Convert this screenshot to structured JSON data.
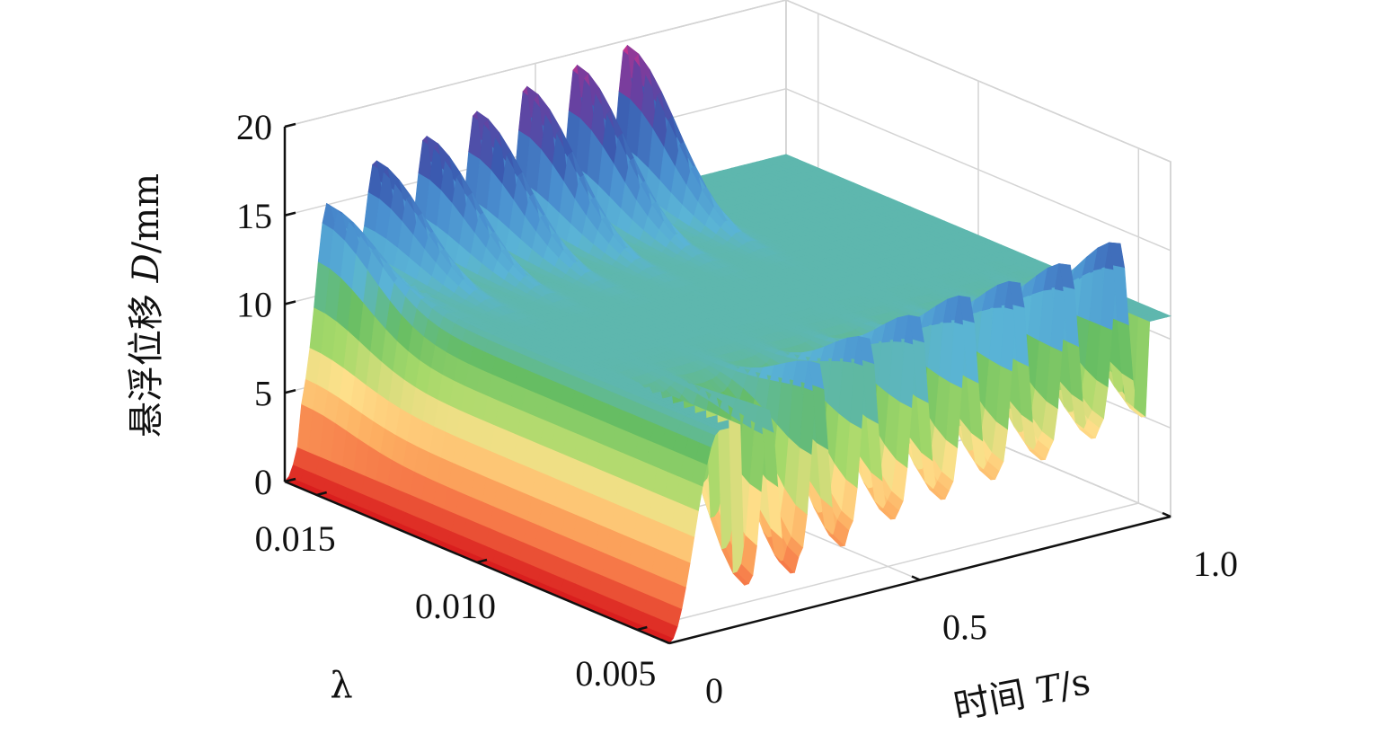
{
  "chart_data": {
    "type": "surface3d",
    "xlabel_prefix": "时间 ",
    "xlabel_var": "T",
    "xlabel_unit": "/s",
    "ylabel_var": "λ",
    "zlabel_prefix": "悬浮位移 ",
    "zlabel_var": "D",
    "zlabel_unit": "/mm",
    "x_ticks": [
      {
        "value": 0,
        "label": "0"
      },
      {
        "value": 0.5,
        "label": "0.5"
      },
      {
        "value": 1.0,
        "label": "1.0"
      }
    ],
    "y_ticks": [
      {
        "value": 0.015,
        "label": "0.015"
      },
      {
        "value": 0.01,
        "label": "0.010"
      },
      {
        "value": 0.005,
        "label": "0.005"
      }
    ],
    "z_ticks": [
      {
        "value": 0,
        "label": "0"
      },
      {
        "value": 5,
        "label": "5"
      },
      {
        "value": 10,
        "label": "10"
      },
      {
        "value": 15,
        "label": "15"
      },
      {
        "value": 20,
        "label": "20"
      }
    ],
    "xlim": [
      0,
      1.0
    ],
    "ylim": [
      0.004,
      0.016
    ],
    "zlim": [
      0,
      20
    ],
    "grid": true,
    "colormap": [
      "#d7191c",
      "#f46d43",
      "#fdae61",
      "#fee08b",
      "#a6d96a",
      "#66bd63",
      "#5ab4d6",
      "#4a90d0",
      "#3a5bb0",
      "#6a3fa0",
      "#e0308a"
    ],
    "surface": {
      "steady_level_mm": 11.3,
      "oscillation_period_s": 0.1,
      "levitation_rise_time_s": 0.1,
      "back_edge": {
        "lambda": 0.016,
        "peak_times": [
          0.08,
          0.18,
          0.28,
          0.38,
          0.48,
          0.58,
          0.68
        ],
        "peak_values": [
          16.0,
          16.9,
          17.6,
          18.3,
          19.0,
          19.5,
          19.9
        ],
        "trough_values": [
          12.5,
          11.5,
          11.2,
          11.2,
          11.3,
          11.5,
          11.8
        ]
      },
      "front_edge": {
        "lambda": 0.004,
        "peak_times": [
          0.2,
          0.3,
          0.4,
          0.5,
          0.6,
          0.7,
          0.8,
          0.9
        ],
        "peak_values": [
          11.7,
          13.6,
          14.3,
          14.8,
          15.2,
          15.3,
          15.6,
          16.1
        ],
        "trough_values": [
          2.2,
          3.0,
          3.8,
          4.2,
          4.6,
          5.0,
          5.5,
          6.0
        ]
      }
    }
  }
}
